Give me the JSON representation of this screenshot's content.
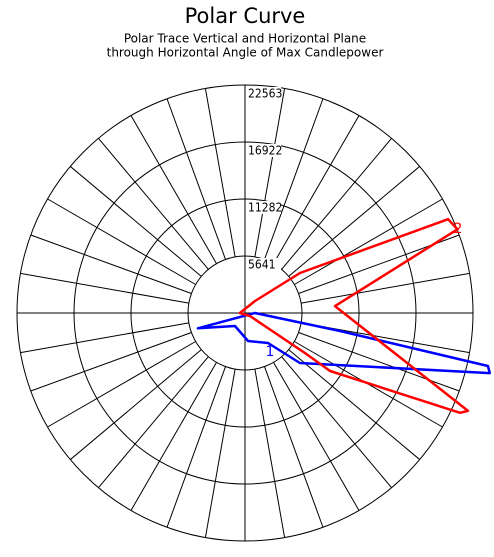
{
  "chart_data": {
    "type": "polar",
    "title": "Polar Curve",
    "subtitle": [
      "Polar Trace Vertical and Horizontal Plane",
      "through Horizontal Angle of Max Candlepower"
    ],
    "rlim": [
      0,
      22563
    ],
    "rticks": [
      5641,
      11282,
      16922,
      22563
    ],
    "series": [
      {
        "name": "1",
        "color": "#0000ff",
        "angles": [
          90,
          288,
          322.4,
          6.1,
          37.5,
          47.7,
          76.2,
          77.7,
          79.3
        ],
        "values": [
          990,
          4900,
          1620,
          2790,
          3740,
          7350,
          24950,
          24600,
          9570
        ]
      },
      {
        "name": "2",
        "color": "#ff0000",
        "angles": [
          140,
          126,
          114.8,
          111.5,
          94.4,
          66.3,
          65.1,
          55.7,
          56.3,
          59,
          270
        ],
        "values": [
          1545,
          6730,
          22140,
          22600,
          8935,
          24100,
          23460,
          10190,
          7130,
          580,
          500
        ]
      }
    ]
  }
}
